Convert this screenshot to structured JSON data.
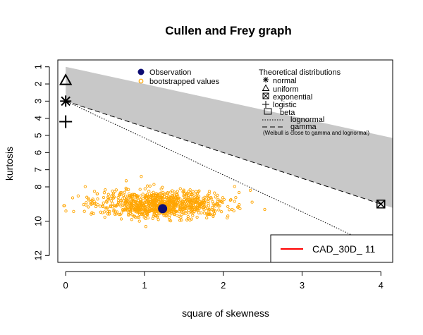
{
  "chart_data": {
    "type": "scatter",
    "title": "Cullen and Frey graph",
    "xlabel": "square of skewness",
    "ylabel": "kurtosis",
    "xlim": [
      -0.1,
      4.15
    ],
    "ylim": [
      12.4,
      0.6
    ],
    "y_reversed": true,
    "x_ticks": [
      "0",
      "1",
      "2",
      "3",
      "4"
    ],
    "y_ticks": [
      "1",
      "2",
      "3",
      "4",
      "5",
      "6",
      "7",
      "8",
      "10",
      "12"
    ],
    "observation": {
      "x": 1.23,
      "y": 9.27,
      "color": "#0d0d73"
    },
    "bootstrap": {
      "color": "#ffa500",
      "count": 900,
      "x_center": 1.2,
      "x_spread": 0.42,
      "y_center": 9.0,
      "y_spread": 0.4
    },
    "distributions": {
      "normal": {
        "x": 0,
        "y": 3
      },
      "uniform": {
        "x": 0,
        "y": 1.8
      },
      "exponential": {
        "x": 4,
        "y": 9
      },
      "logistic": {
        "x": 0,
        "y": 4.2
      },
      "beta_region": {
        "upper_kurtosis_at_0": 1,
        "upper_slope": 1,
        "lower_kurtosis_at_0": 3,
        "lower_slope": 1.5,
        "color": "#c8c8c8"
      },
      "lognormal_line": [
        [
          0,
          3
        ],
        [
          4,
          11.6
        ]
      ],
      "gamma_line": [
        [
          0,
          3
        ],
        [
          4,
          9
        ]
      ]
    },
    "legend_left": {
      "placement": "top-center",
      "entries": [
        "Observation",
        "bootstrapped values"
      ]
    },
    "legend_right": {
      "placement": "top-right",
      "title": "Theoretical distributions",
      "entries": [
        "normal",
        "uniform",
        "exponential",
        "logistic",
        "beta",
        "lognormal",
        "gamma"
      ],
      "note": "(Weibull is close to gamma and lognormal)"
    },
    "legend_bottom": {
      "placement": "bottom-right",
      "label": "CAD_30D_ 11",
      "color": "#ff0000"
    }
  }
}
